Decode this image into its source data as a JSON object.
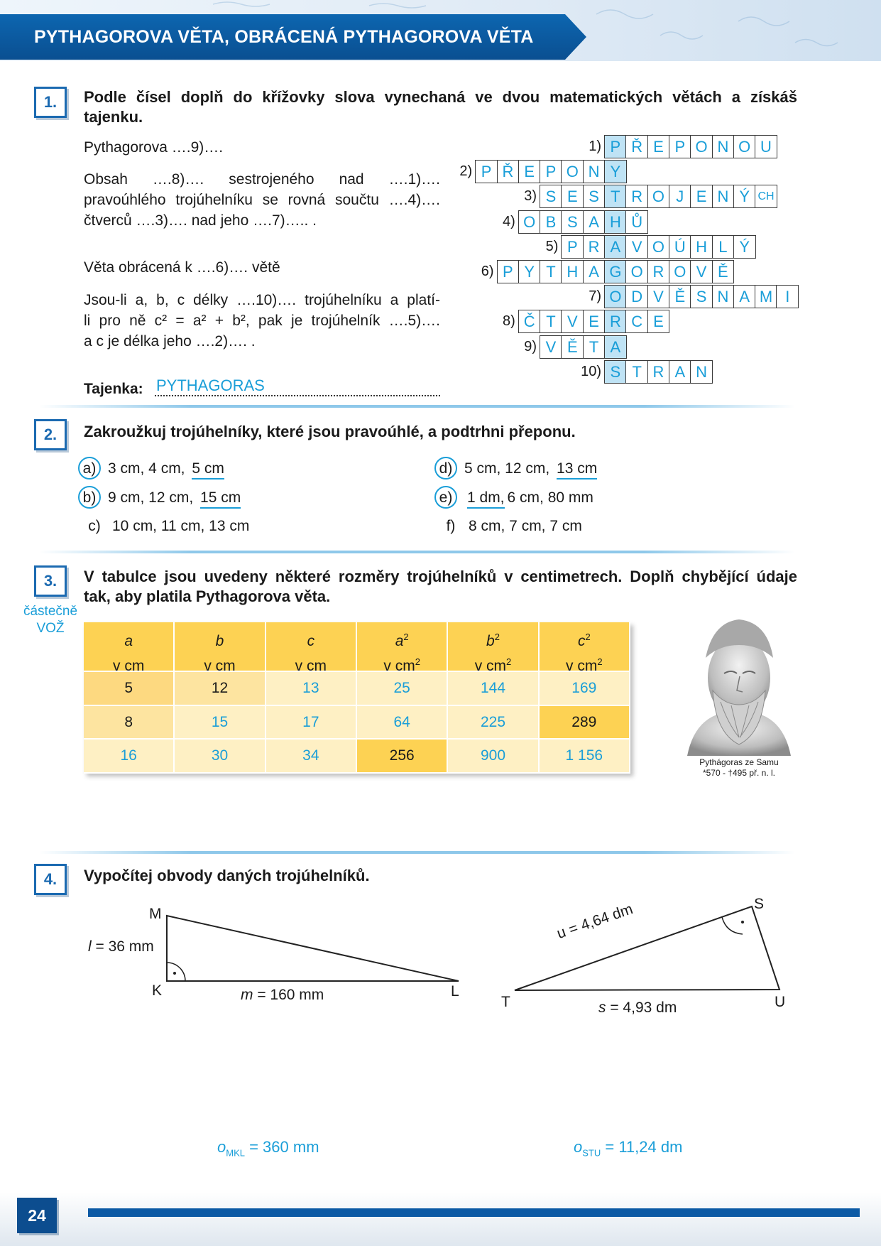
{
  "header": {
    "title": "PYTHAGOROVA VĚTA, OBRÁCENÁ PYTHAGOROVA VĚTA"
  },
  "task1": {
    "number": "1.",
    "instruction_l1": "Podle čísel doplň do křížovky slova vynechaná ve dvou matematických větách a získáš",
    "instruction_l2": "tajenku.",
    "sentence_a": "Pythagorova ….9)….",
    "sentence_b_l1": "Obsah ….8)…. sestrojeného nad ….1)….",
    "sentence_b_l2": "pravoúhlého trojúhelníku se rovná součtu ….4)….",
    "sentence_b_l3": "čtverců ….3)…. nad jeho ….7)….. .",
    "sentence_c": "Věta obrácená k ….6)…. větě",
    "sentence_d_l1": "Jsou-li a, b, c délky ….10)…. trojúhelníku a platí-",
    "sentence_d_l2": "li pro ně c² = a² + b², pak je trojúhelník ….5)….",
    "sentence_d_l3": "a c je délka jeho ….2)…. .",
    "tajenka_label": "Tajenka:",
    "tajenka_answer": "PYTHAGORAS",
    "crossword": [
      {
        "num": "1)",
        "letters": [
          "P",
          "Ř",
          "E",
          "P",
          "O",
          "N",
          "O",
          "U"
        ],
        "key": 0
      },
      {
        "num": "2)",
        "letters": [
          "P",
          "Ř",
          "E",
          "P",
          "O",
          "N",
          "Y"
        ],
        "key": 6
      },
      {
        "num": "3)",
        "letters": [
          "S",
          "E",
          "S",
          "T",
          "R",
          "O",
          "J",
          "E",
          "N",
          "Ý",
          "CH"
        ],
        "key": 3
      },
      {
        "num": "4)",
        "letters": [
          "O",
          "B",
          "S",
          "A",
          "H",
          "Ů"
        ],
        "key": 4
      },
      {
        "num": "5)",
        "letters": [
          "P",
          "R",
          "A",
          "V",
          "O",
          "Ú",
          "H",
          "L",
          "Ý"
        ],
        "key": 2
      },
      {
        "num": "6)",
        "letters": [
          "P",
          "Y",
          "T",
          "H",
          "A",
          "G",
          "O",
          "R",
          "O",
          "V",
          "Ě"
        ],
        "key": 5
      },
      {
        "num": "7)",
        "letters": [
          "O",
          "D",
          "V",
          "Ě",
          "S",
          "N",
          "A",
          "M",
          "I"
        ],
        "key": 0
      },
      {
        "num": "8)",
        "letters": [
          "Č",
          "T",
          "V",
          "E",
          "R",
          "C",
          "E"
        ],
        "key": 4
      },
      {
        "num": "9)",
        "letters": [
          "V",
          "Ě",
          "T",
          "A"
        ],
        "key": 3
      },
      {
        "num": "10)",
        "letters": [
          "S",
          "T",
          "R",
          "A",
          "N"
        ],
        "key": 0
      }
    ]
  },
  "task2": {
    "number": "2.",
    "instruction": "Zakroužkuj trojúhelníky, které jsou pravoúhlé, a podtrhni přeponu.",
    "items": [
      {
        "label": "a)",
        "pre": "3 cm, 4 cm,",
        "under": "5 cm",
        "post": "",
        "circled": true
      },
      {
        "label": "b)",
        "pre": "9 cm, 12 cm,",
        "under": "15 cm",
        "post": "",
        "circled": true
      },
      {
        "label": "c)",
        "pre": "10 cm, 11 cm, 13 cm",
        "under": "",
        "post": "",
        "circled": false
      },
      {
        "label": "d)",
        "pre": "5 cm, 12 cm,",
        "under": "13 cm",
        "post": "",
        "circled": true
      },
      {
        "label": "e)",
        "pre": "",
        "under": "1 dm,",
        "post": "6 cm, 80 mm",
        "circled": true
      },
      {
        "label": "f)",
        "pre": "8 cm, 7 cm, 7 cm",
        "under": "",
        "post": "",
        "circled": false
      }
    ]
  },
  "task3": {
    "number": "3.",
    "side_note_l1": "částečně",
    "side_note_l2": "VOŽ",
    "instruction_l1": "V tabulce jsou uvedeny některé rozměry trojúhelníků v centimetrech. Doplň chybějící údaje",
    "instruction_l2": "tak, aby platila Pythagorova věta.",
    "headers": [
      {
        "sym": "a",
        "sup": "",
        "unit": "v cm",
        "usup": ""
      },
      {
        "sym": "b",
        "sup": "",
        "unit": "v cm",
        "usup": ""
      },
      {
        "sym": "c",
        "sup": "",
        "unit": "v cm",
        "usup": ""
      },
      {
        "sym": "a",
        "sup": "2",
        "unit": "v cm",
        "usup": "2"
      },
      {
        "sym": "b",
        "sup": "2",
        "unit": "v cm",
        "usup": "2"
      },
      {
        "sym": "c",
        "sup": "2",
        "unit": "v cm",
        "usup": "2"
      }
    ],
    "rows": [
      [
        {
          "v": "5",
          "given": true
        },
        {
          "v": "12",
          "given": true
        },
        {
          "v": "13",
          "given": false
        },
        {
          "v": "25",
          "given": false
        },
        {
          "v": "144",
          "given": false
        },
        {
          "v": "169",
          "given": false
        }
      ],
      [
        {
          "v": "8",
          "given": true
        },
        {
          "v": "15",
          "given": false
        },
        {
          "v": "17",
          "given": false
        },
        {
          "v": "64",
          "given": false
        },
        {
          "v": "225",
          "given": false
        },
        {
          "v": "289",
          "given": true
        }
      ],
      [
        {
          "v": "16",
          "given": false
        },
        {
          "v": "30",
          "given": false
        },
        {
          "v": "34",
          "given": false
        },
        {
          "v": "256",
          "given": true
        },
        {
          "v": "900",
          "given": false
        },
        {
          "v": "1 156",
          "given": false
        }
      ]
    ],
    "caption_l1": "Pythágoras ze Samu",
    "caption_l2": "*570 - †495 př. n. l.",
    "colors": {
      "header": "#fdd253",
      "given": "#fde4a0",
      "empty": "#fef0c4"
    }
  },
  "task4": {
    "number": "4.",
    "instruction": "Vypočítej obvody daných trojúhelníků.",
    "tri1": {
      "M": "M",
      "K": "K",
      "L": "L",
      "l_sym": "l",
      "l_val": " = 36 mm",
      "m_sym": "m",
      "m_val": " = 160 mm"
    },
    "tri2": {
      "S": "S",
      "T": "T",
      "U": "U",
      "u_label": "u = 4,64 dm",
      "s_sym": "s",
      "s_val": " = 4,93 dm"
    },
    "answer1": {
      "sym": "o",
      "sub": "MKL",
      "val": " = 360 mm"
    },
    "answer2": {
      "sym": "o",
      "sub": "STU",
      "val": " = 11,24 dm"
    }
  },
  "footer": {
    "page": "24"
  }
}
